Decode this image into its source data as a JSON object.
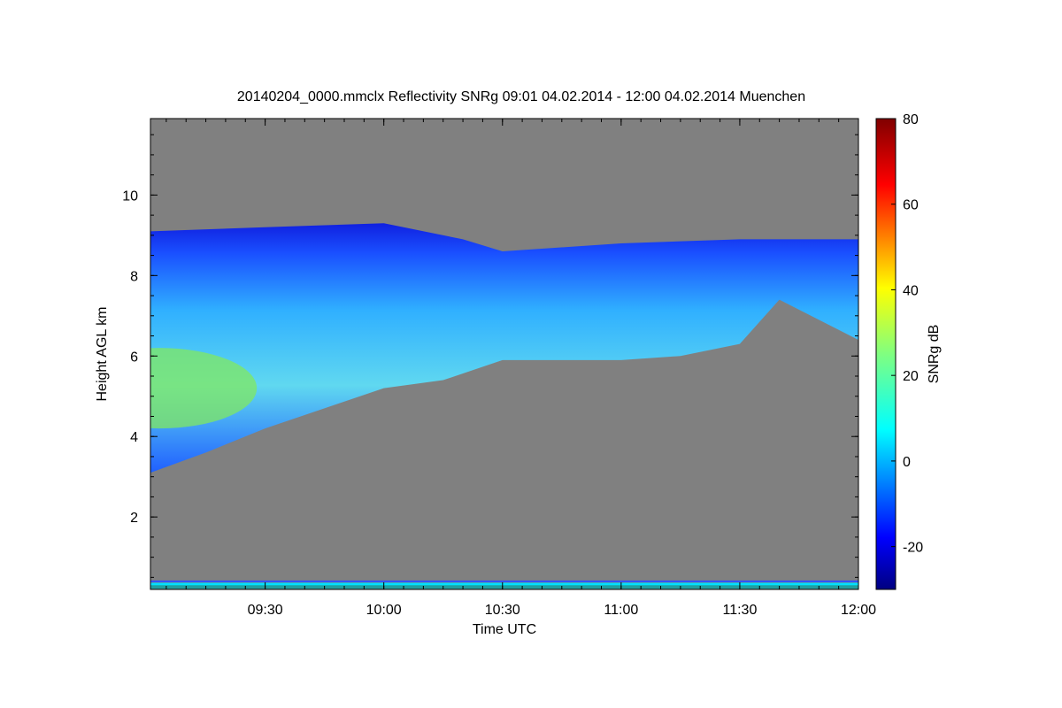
{
  "chart_data": {
    "type": "heatmap",
    "title": "20140204_0000.mmclx Reflectivity SNRg   09:01 04.02.2014 - 12:00 04.02.2014 Muenchen",
    "xlabel": "Time UTC",
    "ylabel": "Height AGL km",
    "x_range": [
      "09:01",
      "12:00"
    ],
    "x_ticks": [
      "09:30",
      "10:00",
      "10:30",
      "11:00",
      "11:30",
      "12:00"
    ],
    "ylim": [
      0.2,
      11.9
    ],
    "y_ticks": [
      2,
      4,
      6,
      8,
      10
    ],
    "background_color": "#808080",
    "colorbar": {
      "label": "SNRg dB",
      "range": [
        -30,
        80
      ],
      "ticks": [
        -20,
        0,
        20,
        40,
        60,
        80
      ],
      "colormap": "jet"
    },
    "features": {
      "cloud_top_km": [
        {
          "time": "09:01",
          "km": 9.1
        },
        {
          "time": "09:30",
          "km": 9.2
        },
        {
          "time": "10:00",
          "km": 9.3
        },
        {
          "time": "10:20",
          "km": 8.9
        },
        {
          "time": "10:30",
          "km": 8.6
        },
        {
          "time": "11:00",
          "km": 8.8
        },
        {
          "time": "11:30",
          "km": 8.9
        },
        {
          "time": "12:00",
          "km": 8.9
        }
      ],
      "cloud_base_km": [
        {
          "time": "09:01",
          "km": 3.1
        },
        {
          "time": "09:15",
          "km": 3.6
        },
        {
          "time": "09:30",
          "km": 4.2
        },
        {
          "time": "09:45",
          "km": 4.7
        },
        {
          "time": "10:00",
          "km": 5.2
        },
        {
          "time": "10:15",
          "km": 5.4
        },
        {
          "time": "10:30",
          "km": 5.9
        },
        {
          "time": "10:45",
          "km": 5.9
        },
        {
          "time": "11:00",
          "km": 5.9
        },
        {
          "time": "11:15",
          "km": 6.0
        },
        {
          "time": "11:30",
          "km": 6.3
        },
        {
          "time": "11:40",
          "km": 7.4
        },
        {
          "time": "12:00",
          "km": 6.4
        }
      ],
      "max_snr_region": {
        "time_range": [
          "09:01",
          "09:30"
        ],
        "km_range": [
          4.2,
          6.2
        ],
        "snr_db": 22
      }
    }
  }
}
